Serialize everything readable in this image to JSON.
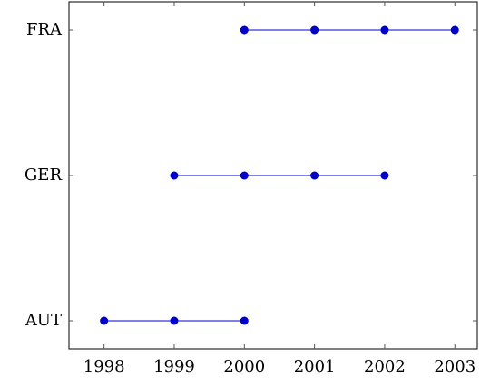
{
  "chart_data": {
    "type": "line",
    "series": [
      {
        "name": "AUT",
        "color": "#0000cc",
        "x": [
          1998,
          1999,
          2000
        ]
      },
      {
        "name": "GER",
        "color": "#0000cc",
        "x": [
          1999,
          2000,
          2001,
          2002
        ]
      },
      {
        "name": "FRA",
        "color": "#0000cc",
        "x": [
          2000,
          2001,
          2002,
          2003
        ]
      }
    ],
    "xlim": [
      1997.5,
      2003.32
    ],
    "xticks": [
      1998,
      1999,
      2000,
      2001,
      2002,
      2003
    ]
  }
}
